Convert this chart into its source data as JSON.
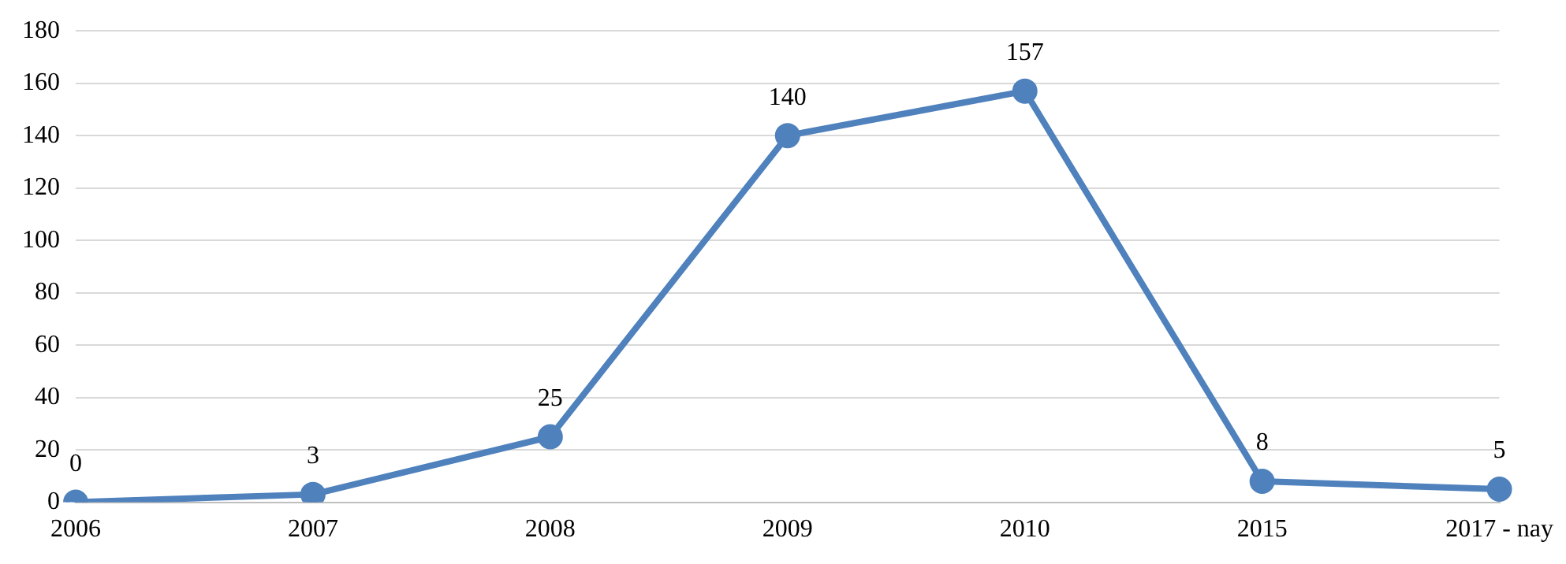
{
  "chart_data": {
    "type": "line",
    "categories": [
      "2006",
      "2007",
      "2008",
      "2009",
      "2010",
      "2015",
      "2017 - nay"
    ],
    "series": [
      {
        "color": "#4f81bd",
        "values": [
          0,
          3,
          25,
          140,
          157,
          8,
          5
        ]
      }
    ],
    "ylim": [
      0,
      180
    ],
    "yticks": [
      0,
      20,
      40,
      60,
      80,
      100,
      120,
      140,
      160,
      180
    ],
    "grid": "y",
    "legend": false,
    "marker": "circle",
    "line_style": "solid",
    "data_labels": true
  }
}
